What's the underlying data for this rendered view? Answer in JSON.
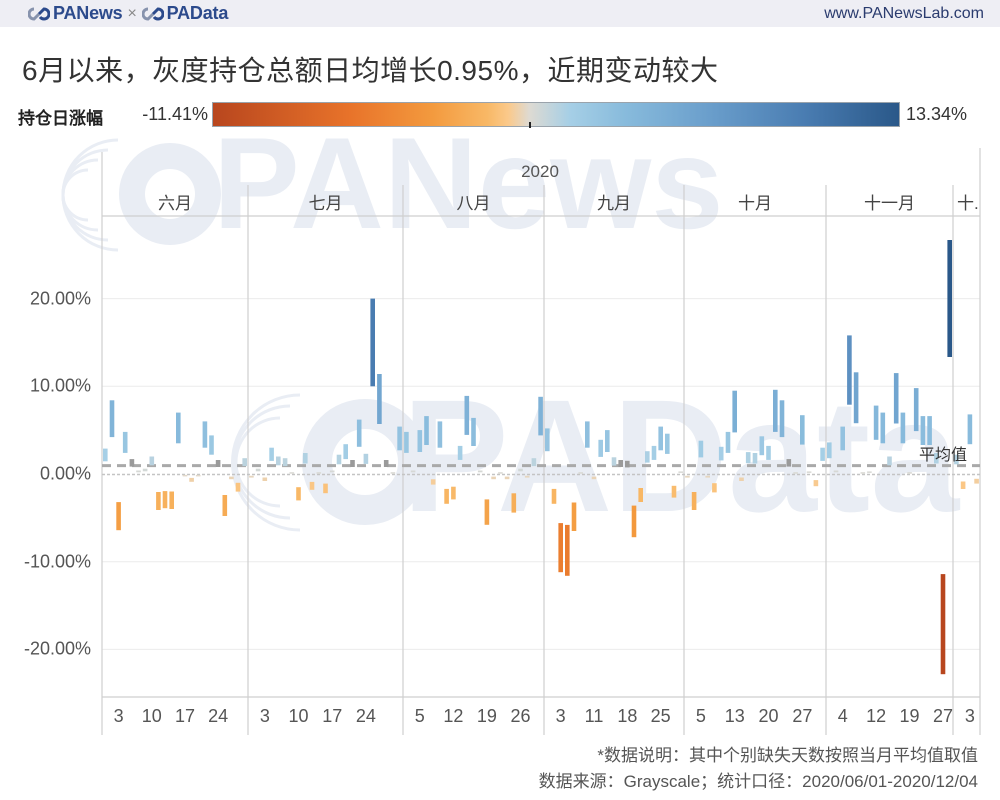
{
  "header": {
    "brand_left": "PANews",
    "separator": "×",
    "brand_right": "PAData",
    "url": "www.PANewsLab.com"
  },
  "title": "6月以来，灰度持仓总额日均增长0.95%，近期变动较大",
  "legend": {
    "label": "持仓日涨幅",
    "min_label": "-11.41%",
    "max_label": "13.34%"
  },
  "chart": {
    "year": "2020",
    "average_label": "平均值"
  },
  "watermark": {
    "top": "PANews",
    "bottom": "PAData"
  },
  "footer": {
    "note": "*数据说明：其中个别缺失天数按照当月平均值取值",
    "source": "数据来源：Grayscale；统计口径：2020/06/01-2020/12/04"
  },
  "colors": {
    "brand": "#2c4a8c",
    "filled": "#9a9a9a",
    "grid": "#ececec",
    "average_line": "#a9a9a9",
    "zero_line": "#c4c4c4",
    "scale": [
      [
        0.0,
        "#b8461e"
      ],
      [
        0.2,
        "#e8732a"
      ],
      [
        0.32,
        "#f39a3e"
      ],
      [
        0.4,
        "#f8b866"
      ],
      [
        0.43,
        "#fbc98a"
      ],
      [
        0.461,
        "#dedad2"
      ],
      [
        0.52,
        "#a6cfe6"
      ],
      [
        0.6,
        "#88bbdc"
      ],
      [
        0.72,
        "#6b9fcc"
      ],
      [
        0.86,
        "#4a7db2"
      ],
      [
        1.0,
        "#2a5889"
      ]
    ]
  },
  "chart_data": {
    "type": "bar",
    "subtype": "floating-gantt (bar spans v to 2v)",
    "title": "6月以来，灰度持仓总额日均增长0.95%，近期变动较大",
    "xlabel": "2020",
    "ylabel": "",
    "ylim": [
      -25,
      30
    ],
    "y_ticks": [
      {
        "v": 20,
        "label": "20.00%"
      },
      {
        "v": 10,
        "label": "10.00%"
      },
      {
        "v": 0,
        "label": "0.00%"
      },
      {
        "v": -10,
        "label": "-10.00%"
      },
      {
        "v": -20,
        "label": "-20.00%"
      }
    ],
    "average": 0.95,
    "average_label": "平均值",
    "color_field": "持仓日涨幅",
    "color_range": [
      -11.41,
      13.34
    ],
    "grid": true,
    "months": [
      {
        "label": "六月",
        "ticks": [
          3,
          10,
          17,
          24
        ],
        "days": [
          1,
          2,
          3,
          4,
          5,
          8,
          9,
          10,
          11,
          12,
          15,
          16,
          17,
          18,
          19,
          22,
          23,
          24,
          25,
          26,
          29,
          30
        ],
        "values": [
          1.45,
          4.2,
          -3.2,
          2.4,
          0.85,
          0.2,
          0.3,
          1.0,
          -2.05,
          -1.95,
          -2.0,
          3.5,
          -0.1,
          -0.45,
          -0.1,
          3.0,
          2.2,
          0.8,
          -2.4,
          -0.3,
          -1.0,
          0.9
        ],
        "filled": [
          5,
          24
        ]
      },
      {
        "label": "七月",
        "ticks": [
          3,
          10,
          17,
          24
        ],
        "days": [
          1,
          2,
          3,
          6,
          7,
          8,
          9,
          10,
          13,
          14,
          15,
          16,
          17,
          20,
          21,
          22,
          23,
          24,
          27,
          28,
          29,
          30,
          31
        ],
        "values": [
          -0.2,
          0.3,
          -0.4,
          1.5,
          1.0,
          0.9,
          0.1,
          -1.5,
          1.2,
          -0.9,
          0.1,
          -1.1,
          0.2,
          1.1,
          1.7,
          0.8,
          3.1,
          1.15,
          10.0,
          5.7,
          0.8,
          0.1,
          2.7
        ],
        "filled": [
          22,
          29
        ]
      },
      {
        "label": "八月",
        "ticks": [
          5,
          12,
          19,
          26
        ],
        "days": [
          3,
          4,
          5,
          6,
          7,
          10,
          11,
          12,
          13,
          14,
          17,
          18,
          19,
          20,
          21,
          24,
          25,
          26,
          27,
          28,
          31
        ],
        "values": [
          2.4,
          0.2,
          2.5,
          3.3,
          -0.6,
          3.0,
          -1.7,
          -1.45,
          1.6,
          4.45,
          3.2,
          0.2,
          -2.9,
          -0.3,
          0.1,
          -0.3,
          -2.2,
          0.3,
          -0.2,
          0.9,
          4.4
        ],
        "filled": []
      },
      {
        "label": "九月",
        "ticks": [
          3,
          11,
          18,
          25
        ],
        "days": [
          1,
          2,
          3,
          4,
          8,
          9,
          10,
          11,
          14,
          15,
          16,
          17,
          18,
          21,
          22,
          23,
          24,
          25,
          28,
          29,
          30
        ],
        "values": [
          2.6,
          -1.7,
          -5.6,
          -5.8,
          -3.25,
          0.1,
          3.0,
          -0.3,
          1.95,
          2.5,
          0.95,
          0.8,
          0.75,
          -3.6,
          -1.6,
          1.3,
          1.6,
          2.7,
          2.3,
          -1.35,
          0.15
        ],
        "filled": [
          17,
          18
        ]
      },
      {
        "label": "十月",
        "ticks": [
          5,
          13,
          20,
          27
        ],
        "days": [
          1,
          2,
          5,
          6,
          7,
          8,
          9,
          13,
          14,
          15,
          16,
          19,
          20,
          21,
          22,
          23,
          26,
          27,
          28,
          29,
          30
        ],
        "values": [
          -0.2,
          -2.05,
          1.9,
          -0.2,
          -1.05,
          1.55,
          2.4,
          4.75,
          -0.4,
          1.25,
          1.2,
          2.15,
          1.6,
          4.8,
          4.2,
          0.85,
          0.1,
          3.35,
          0.15,
          -0.7,
          1.5
        ],
        "filled": [
          23
        ]
      },
      {
        "label": "十一月",
        "ticks": [
          4,
          12,
          19,
          27
        ],
        "days": [
          2,
          3,
          4,
          5,
          6,
          9,
          10,
          12,
          13,
          16,
          17,
          18,
          19,
          20,
          23,
          24,
          25,
          27,
          30
        ],
        "values": [
          1.8,
          0.2,
          2.7,
          7.9,
          5.8,
          0.1,
          0.15,
          3.9,
          3.5,
          1.0,
          5.75,
          3.5,
          0.1,
          4.9,
          3.3,
          3.3,
          1.2,
          -11.41,
          13.34
        ],
        "filled": []
      },
      {
        "label": "十.",
        "ticks": [
          3
        ],
        "days": [
          1,
          2,
          3,
          4
        ],
        "values": [
          1.1,
          -0.85,
          3.4,
          -0.55
        ],
        "filled": []
      }
    ]
  }
}
